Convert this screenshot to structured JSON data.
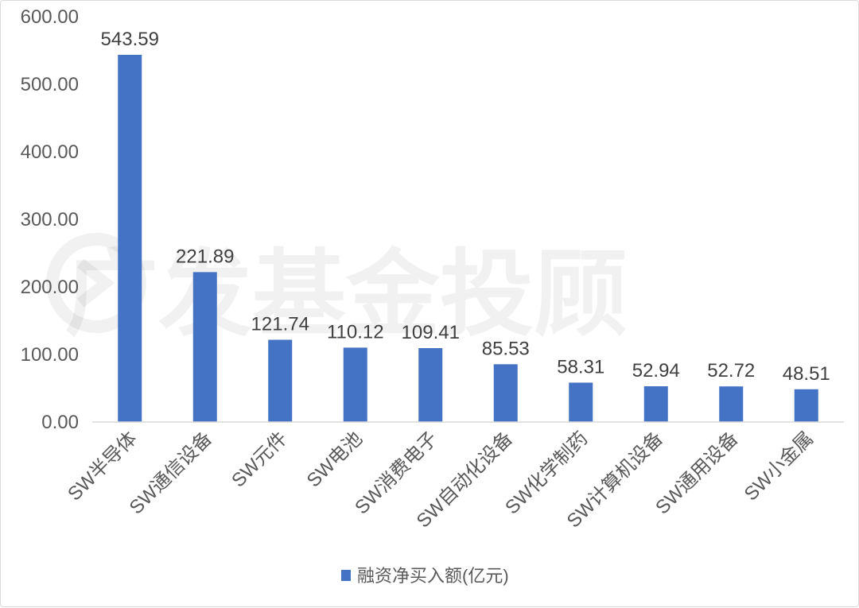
{
  "watermark": {
    "text": "广发基金投顾"
  },
  "chart_data": {
    "type": "bar",
    "categories": [
      "SW半导体",
      "SW通信设备",
      "SW元件",
      "SW电池",
      "SW消费电子",
      "SW自动化设备",
      "SW化学制药",
      "SW计算机设备",
      "SW通用设备",
      "SW小金属"
    ],
    "series": [
      {
        "name": "融资净买入额(亿元)",
        "values": [
          543.59,
          221.89,
          121.74,
          110.12,
          109.41,
          85.53,
          58.31,
          52.94,
          52.72,
          48.51
        ],
        "labels": [
          "543.59",
          "221.89",
          "121.74",
          "110.12",
          "109.41",
          "85.53",
          "58.31",
          "52.94",
          "52.72",
          "48.51"
        ],
        "color": "#4472c4"
      }
    ],
    "yticks": [
      "0.00",
      "100.00",
      "200.00",
      "300.00",
      "400.00",
      "500.00",
      "600.00"
    ],
    "ylim": [
      0,
      600
    ],
    "grid": false,
    "legend_position": "bottom"
  }
}
